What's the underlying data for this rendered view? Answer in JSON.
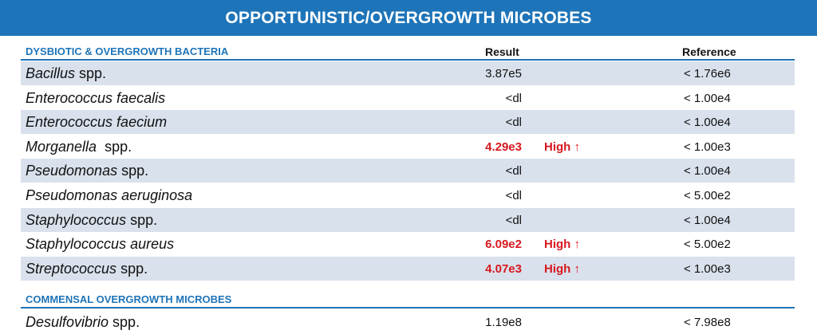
{
  "banner_title": "OPPORTUNISTIC/OVERGROWTH MICROBES",
  "columns": {
    "result": "Result",
    "reference": "Reference"
  },
  "section1": {
    "title": "DYSBIOTIC & OVERGROWTH BACTERIA",
    "rows": [
      {
        "name_italic": "Bacillus",
        "name_rest": " spp.",
        "result": "3.87e5",
        "flag": "",
        "reference": "< 1.76e6",
        "high": false
      },
      {
        "name_italic": "Enterococcus faecalis",
        "name_rest": "",
        "result": "<dl",
        "flag": "",
        "reference": "< 1.00e4",
        "high": false
      },
      {
        "name_italic": "Enterococcus faecium",
        "name_rest": "",
        "result": "<dl",
        "flag": "",
        "reference": "< 1.00e4",
        "high": false
      },
      {
        "name_italic": "Morganella",
        "name_rest": "  spp.",
        "result": "4.29e3",
        "flag": "High ↑",
        "reference": "< 1.00e3",
        "high": true
      },
      {
        "name_italic": "Pseudomonas",
        "name_rest": " spp.",
        "result": "<dl",
        "flag": "",
        "reference": "< 1.00e4",
        "high": false
      },
      {
        "name_italic": "Pseudomonas aeruginosa",
        "name_rest": "",
        "result": "<dl",
        "flag": "",
        "reference": "< 5.00e2",
        "high": false
      },
      {
        "name_italic": "Staphylococcus",
        "name_rest": " spp.",
        "result": "<dl",
        "flag": "",
        "reference": "< 1.00e4",
        "high": false
      },
      {
        "name_italic": "Staphylococcus aureus",
        "name_rest": "",
        "result": "6.09e2",
        "flag": "High ↑",
        "reference": "< 5.00e2",
        "high": true
      },
      {
        "name_italic": "Streptococcus",
        "name_rest": " spp.",
        "result": "4.07e3",
        "flag": "High ↑",
        "reference": "< 1.00e3",
        "high": true
      }
    ]
  },
  "section2": {
    "title": "COMMENSAL OVERGROWTH MICROBES",
    "rows": [
      {
        "name_italic": "Desulfovibrio",
        "name_rest": " spp.",
        "result": "1.19e8",
        "flag": "",
        "reference": "< 7.98e8",
        "high": false
      }
    ]
  },
  "colors": {
    "banner": "#1e74b8",
    "row_shade": "#d9e1ec",
    "high_flag": "#d71920"
  }
}
